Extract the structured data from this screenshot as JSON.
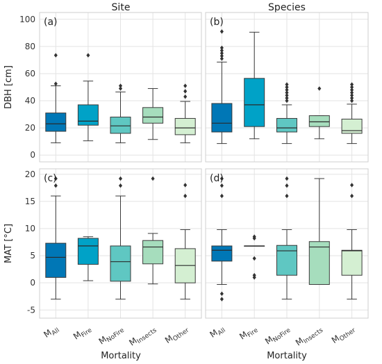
{
  "chart_data": {
    "type": "box",
    "titles": [
      "Site",
      "Species"
    ],
    "x_categories": [
      {
        "base": "M",
        "sub": "All"
      },
      {
        "base": "M",
        "sub": "Fire"
      },
      {
        "base": "M",
        "sub": "NoFire"
      },
      {
        "base": "M",
        "sub": "Insects"
      },
      {
        "base": "M",
        "sub": "Other"
      }
    ],
    "xlabel": "Mortality",
    "colors": [
      "#0077b6",
      "#00a2c7",
      "#5fc7c2",
      "#a6ddbd",
      "#d4efd2"
    ],
    "grid": true,
    "rows": [
      {
        "ylabel": "DBH [cm]",
        "ylim": [
          -5,
          105
        ],
        "yticks": [
          0,
          20,
          40,
          60,
          80,
          100
        ],
        "panels": [
          {
            "label": "(a)",
            "boxes": [
              {
                "whislo": 9,
                "q1": 17.5,
                "median": 23,
                "q3": 31,
                "whishi": 51,
                "fliers": [
                  52.5,
                  73.5
                ]
              },
              {
                "whislo": 10.5,
                "q1": 22,
                "median": 25,
                "q3": 37,
                "whishi": 54.5,
                "fliers": [
                  73.5
                ]
              },
              {
                "whislo": 9,
                "q1": 16,
                "median": 21.5,
                "q3": 28,
                "whishi": 46.5,
                "fliers": [
                  49,
                  51
                ]
              },
              {
                "whislo": 11.5,
                "q1": 23.5,
                "median": 28,
                "q3": 35,
                "whishi": 49,
                "fliers": []
              },
              {
                "whislo": 9,
                "q1": 15,
                "median": 20,
                "q3": 27,
                "whishi": 39.5,
                "fliers": [
                  43,
                  47,
                  51
                ]
              }
            ]
          },
          {
            "label": "(b)",
            "boxes": [
              {
                "whislo": 8.5,
                "q1": 17,
                "median": 23.5,
                "q3": 38,
                "whishi": 68.5,
                "fliers": [
                  71,
                  73,
                  75,
                  77,
                  79,
                  91
                ]
              },
              {
                "whislo": 12,
                "q1": 21,
                "median": 37,
                "q3": 56.5,
                "whishi": 90.5,
                "fliers": []
              },
              {
                "whislo": 8.5,
                "q1": 17,
                "median": 20,
                "q3": 27,
                "whishi": 37,
                "fliers": [
                  40,
                  42,
                  44,
                  46,
                  48,
                  50,
                  52
                ]
              },
              {
                "whislo": 12,
                "q1": 21,
                "median": 24.5,
                "q3": 29,
                "whishi": 29,
                "fliers": [
                  49
                ]
              },
              {
                "whislo": 8.5,
                "q1": 16,
                "median": 18,
                "q3": 26.5,
                "whishi": 37.5,
                "fliers": [
                  40,
                  42,
                  44,
                  46,
                  48,
                  50,
                  52
                ]
              }
            ]
          }
        ]
      },
      {
        "ylabel": "MAT [°C]",
        "ylim": [
          -6.5,
          21
        ],
        "yticks": [
          -5,
          0,
          5,
          10,
          15,
          20
        ],
        "panels": [
          {
            "label": "(c)",
            "boxes": [
              {
                "whislo": -3,
                "q1": 1,
                "median": 4.7,
                "q3": 7.3,
                "whishi": 16,
                "fliers": [
                  17.9,
                  19.2
                ]
              },
              {
                "whislo": 0.4,
                "q1": 3.4,
                "median": 6.8,
                "q3": 8.2,
                "whishi": 8.5,
                "fliers": []
              },
              {
                "whislo": -3,
                "q1": 0.3,
                "median": 3.9,
                "q3": 6.8,
                "whishi": 16,
                "fliers": [
                  17.9,
                  19.2
                ]
              },
              {
                "whislo": -0.2,
                "q1": 3.5,
                "median": 6.6,
                "q3": 7.8,
                "whishi": 9.1,
                "fliers": [
                  19.2
                ]
              },
              {
                "whislo": -3,
                "q1": 0,
                "median": 3.2,
                "q3": 6.3,
                "whishi": 9.8,
                "fliers": [
                  16,
                  18
                ]
              }
            ]
          },
          {
            "label": "(d)",
            "boxes": [
              {
                "whislo": -0.3,
                "q1": 4,
                "median": 6,
                "q3": 6.8,
                "whishi": 9.8,
                "fliers": [
                  -3,
                  -2,
                  16,
                  17.9,
                  19.2
                ]
              },
              {
                "whislo": 6.8,
                "q1": 6.8,
                "median": 6.8,
                "q3": 6.8,
                "whishi": 6.8,
                "fliers": [
                  1,
                  1.4,
                  4.5,
                  8.2,
                  8.5
                ]
              },
              {
                "whislo": -3,
                "q1": 1.4,
                "median": 5.9,
                "q3": 6.9,
                "whishi": 9.8,
                "fliers": [
                  16,
                  17.9,
                  19.2
                ]
              },
              {
                "whislo": -0.3,
                "q1": -0.3,
                "median": 6.6,
                "q3": 7.6,
                "whishi": 19.2,
                "fliers": []
              },
              {
                "whislo": -3,
                "q1": 1.4,
                "median": 5.9,
                "q3": 6,
                "whishi": 9.8,
                "fliers": [
                  16,
                  18
                ]
              }
            ]
          }
        ]
      }
    ]
  }
}
